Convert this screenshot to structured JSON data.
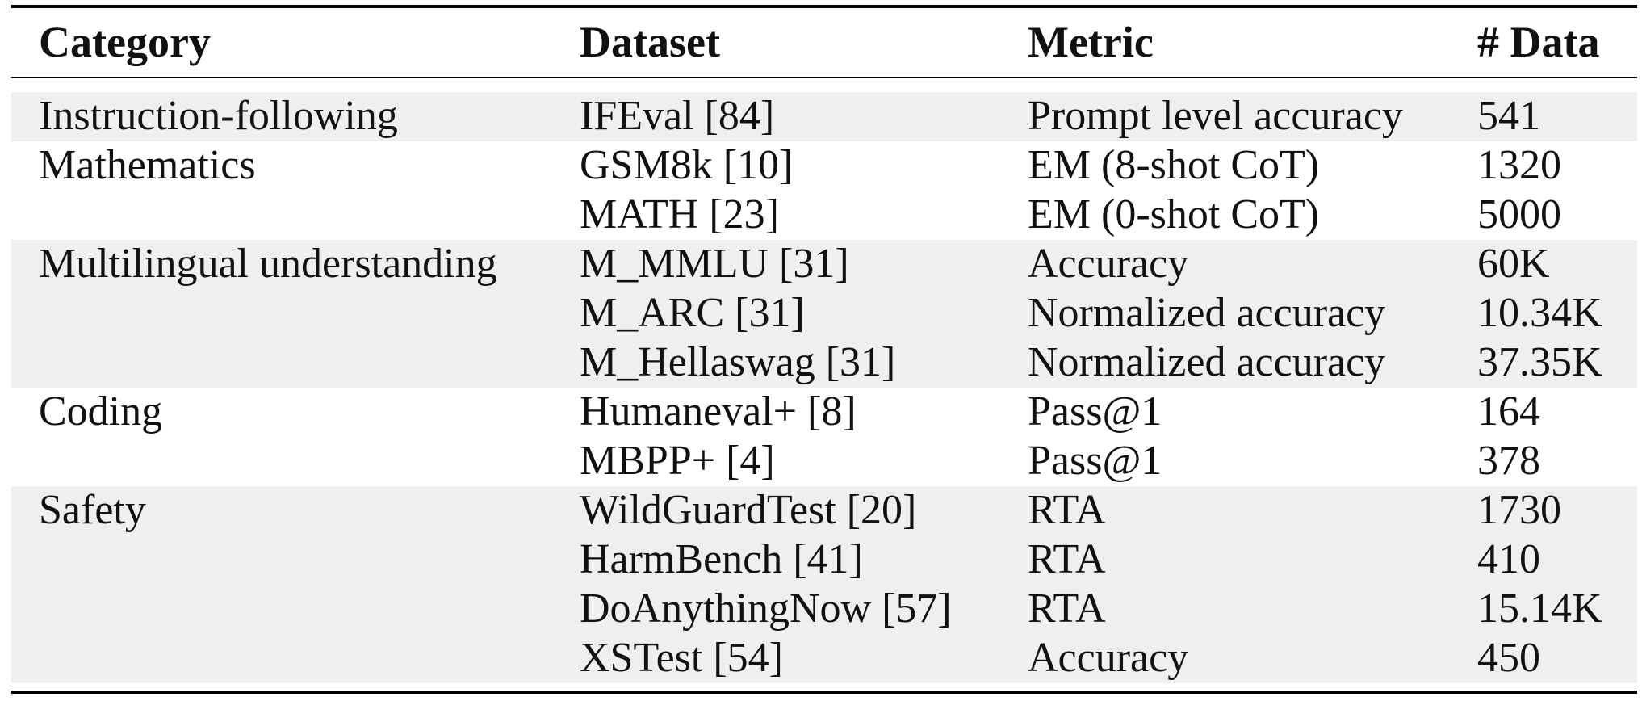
{
  "table": {
    "headers": {
      "category": "Category",
      "dataset": "Dataset",
      "metric": "Metric",
      "data": "# Data"
    },
    "groups": [
      {
        "category": "Instruction-following",
        "shaded": true,
        "rows": [
          {
            "dataset": "IFEval [84]",
            "metric": "Prompt level accuracy",
            "data": "541"
          }
        ]
      },
      {
        "category": "Mathematics",
        "shaded": false,
        "rows": [
          {
            "dataset": "GSM8k [10]",
            "metric": "EM (8-shot CoT)",
            "data": "1320"
          },
          {
            "dataset": "MATH [23]",
            "metric": "EM (0-shot CoT)",
            "data": "5000"
          }
        ]
      },
      {
        "category": "Multilingual understanding",
        "shaded": true,
        "rows": [
          {
            "dataset": "M_MMLU [31]",
            "metric": "Accuracy",
            "data": "60K"
          },
          {
            "dataset": "M_ARC [31]",
            "metric": "Normalized accuracy",
            "data": "10.34K"
          },
          {
            "dataset": "M_Hellaswag [31]",
            "metric": "Normalized accuracy",
            "data": "37.35K"
          }
        ]
      },
      {
        "category": "Coding",
        "shaded": false,
        "rows": [
          {
            "dataset": "Humaneval+ [8]",
            "metric": "Pass@1",
            "data": "164"
          },
          {
            "dataset": "MBPP+ [4]",
            "metric": "Pass@1",
            "data": "378"
          }
        ]
      },
      {
        "category": "Safety",
        "shaded": true,
        "rows": [
          {
            "dataset": "WildGuardTest [20]",
            "metric": "RTA",
            "data": "1730"
          },
          {
            "dataset": "HarmBench [41]",
            "metric": "RTA",
            "data": "410"
          },
          {
            "dataset": "DoAnythingNow [57]",
            "metric": "RTA",
            "data": "15.14K"
          },
          {
            "dataset": "XSTest [54]",
            "metric": "Accuracy",
            "data": "450"
          }
        ]
      }
    ]
  }
}
